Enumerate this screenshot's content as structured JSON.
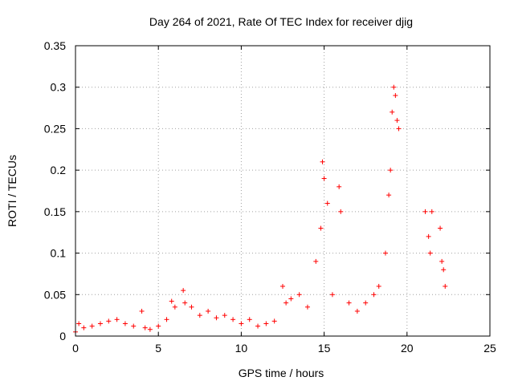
{
  "chart_data": {
    "type": "scatter",
    "title": "Day 264 of 2021, Rate Of TEC Index for receiver djig",
    "xlabel": "GPS time / hours",
    "ylabel": "ROTI / TECUs",
    "xlim": [
      0,
      25
    ],
    "ylim": [
      0,
      0.35
    ],
    "xticks": [
      "0",
      "5",
      "10",
      "15",
      "20",
      "25"
    ],
    "yticks": [
      "0",
      "0.05",
      "0.1",
      "0.15",
      "0.2",
      "0.25",
      "0.3",
      "0.35"
    ],
    "grid": true,
    "marker": "+",
    "color": "#ff0000",
    "series": [
      {
        "x": [
          0.0,
          0.2,
          0.5,
          1.0,
          1.5,
          2.0,
          2.5,
          3.0,
          3.5,
          4.0,
          4.2,
          4.5,
          5.0,
          5.5,
          5.8,
          6.0,
          6.5,
          6.6,
          7.0,
          7.5,
          8.0,
          8.5,
          9.0,
          9.5,
          10.0,
          10.5,
          11.0,
          11.5,
          12.0,
          12.5,
          12.7,
          13.0,
          13.5,
          14.0,
          14.5,
          14.8,
          14.9,
          15.0,
          15.2,
          15.5,
          15.9,
          16.0,
          16.5,
          17.0,
          17.5,
          18.0,
          18.3,
          18.7,
          18.9,
          19.0,
          19.1,
          19.2,
          19.3,
          19.4,
          19.5,
          21.1,
          21.3,
          21.4,
          21.5,
          22.0,
          22.1,
          22.2,
          22.3
        ],
        "y": [
          0.005,
          0.015,
          0.01,
          0.012,
          0.015,
          0.018,
          0.02,
          0.015,
          0.012,
          0.03,
          0.01,
          0.008,
          0.012,
          0.02,
          0.042,
          0.035,
          0.055,
          0.04,
          0.035,
          0.025,
          0.03,
          0.022,
          0.025,
          0.02,
          0.015,
          0.02,
          0.012,
          0.015,
          0.018,
          0.06,
          0.04,
          0.045,
          0.05,
          0.035,
          0.09,
          0.13,
          0.21,
          0.19,
          0.16,
          0.05,
          0.18,
          0.15,
          0.04,
          0.03,
          0.04,
          0.05,
          0.06,
          0.1,
          0.17,
          0.2,
          0.27,
          0.3,
          0.29,
          0.26,
          0.25,
          0.15,
          0.12,
          0.1,
          0.15,
          0.13,
          0.09,
          0.08,
          0.06
        ]
      }
    ]
  }
}
